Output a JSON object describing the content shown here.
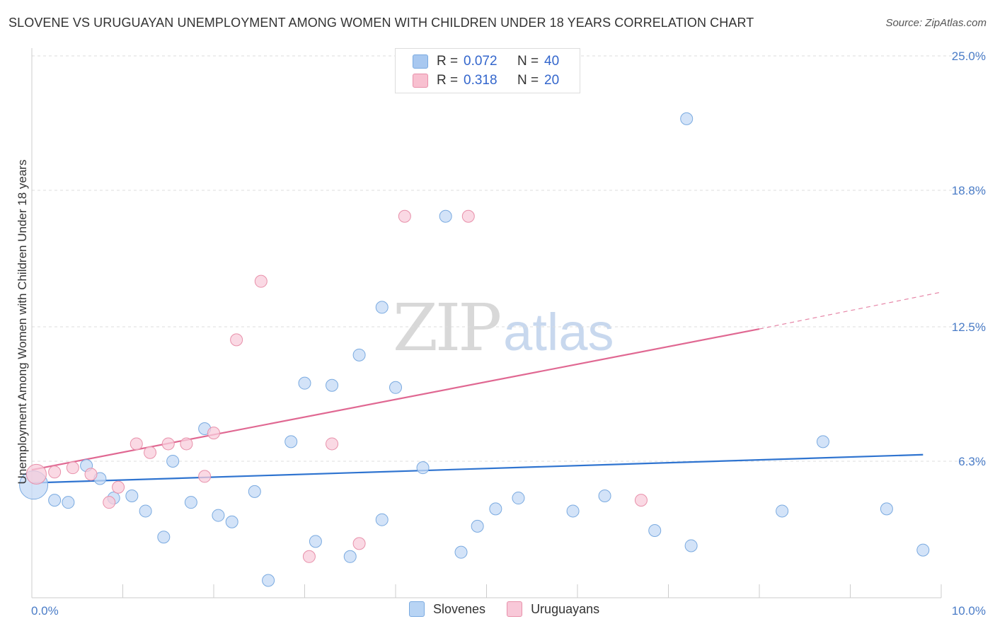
{
  "title": "SLOVENE VS URUGUAYAN UNEMPLOYMENT AMONG WOMEN WITH CHILDREN UNDER 18 YEARS CORRELATION CHART",
  "source": "Source: ZipAtlas.com",
  "watermark": {
    "zip": "ZIP",
    "atlas": "atlas"
  },
  "legend": {
    "rows": [
      {
        "r_label": "R =",
        "r_value": "0.072",
        "n_label": "N =",
        "n_value": "40",
        "color": "#a8c8f0",
        "border": "#7aaae0"
      },
      {
        "r_label": "R =",
        "r_value": "0.318",
        "n_label": "N =",
        "n_value": "20",
        "color": "#f8c0d0",
        "border": "#e890aa"
      }
    ]
  },
  "bottom_legend": [
    {
      "label": "Slovenes",
      "color": "#b8d4f4",
      "border": "#7aaae0"
    },
    {
      "label": "Uruguayans",
      "color": "#f8c8d8",
      "border": "#e890aa"
    }
  ],
  "chart_data": {
    "type": "scatter",
    "title": "SLOVENE VS URUGUAYAN UNEMPLOYMENT AMONG WOMEN WITH CHILDREN UNDER 18 YEARS CORRELATION CHART",
    "xlabel": "",
    "ylabel": "Unemployment Among Women with Children Under 18 years",
    "xlim": [
      0,
      10
    ],
    "ylim": [
      0,
      25
    ],
    "x_tick_labels": [
      "0.0%",
      "10.0%"
    ],
    "y_ticks": [
      6.3,
      12.5,
      18.8,
      25.0
    ],
    "y_tick_labels": [
      "6.3%",
      "12.5%",
      "18.8%",
      "25.0%"
    ],
    "grid": true,
    "series": [
      {
        "name": "Slovenes",
        "color": "#7aaae0",
        "fill": "#c4daf5",
        "trend": {
          "x0": 0,
          "y0": 5.3,
          "x1": 9.8,
          "y1": 6.6,
          "color": "#2f74d0"
        },
        "points": [
          [
            0.02,
            5.2
          ],
          [
            0.25,
            4.5
          ],
          [
            0.4,
            4.4
          ],
          [
            0.6,
            6.1
          ],
          [
            0.75,
            5.5
          ],
          [
            0.9,
            4.6
          ],
          [
            1.1,
            4.7
          ],
          [
            1.25,
            4.0
          ],
          [
            1.45,
            2.8
          ],
          [
            1.55,
            6.3
          ],
          [
            1.75,
            4.4
          ],
          [
            1.9,
            7.8
          ],
          [
            2.05,
            3.8
          ],
          [
            2.2,
            3.5
          ],
          [
            2.45,
            4.9
          ],
          [
            2.6,
            0.8
          ],
          [
            2.85,
            7.2
          ],
          [
            3.0,
            9.9
          ],
          [
            3.12,
            2.6
          ],
          [
            3.3,
            9.8
          ],
          [
            3.5,
            1.9
          ],
          [
            3.6,
            11.2
          ],
          [
            3.85,
            13.4
          ],
          [
            3.85,
            3.6
          ],
          [
            4.0,
            9.7
          ],
          [
            4.3,
            6.0
          ],
          [
            4.55,
            17.6
          ],
          [
            4.72,
            2.1
          ],
          [
            4.9,
            3.3
          ],
          [
            5.1,
            4.1
          ],
          [
            5.35,
            4.6
          ],
          [
            5.95,
            4.0
          ],
          [
            6.3,
            4.7
          ],
          [
            6.85,
            3.1
          ],
          [
            7.2,
            22.1
          ],
          [
            7.25,
            2.4
          ],
          [
            8.25,
            4.0
          ],
          [
            8.7,
            7.2
          ],
          [
            9.4,
            4.1
          ],
          [
            9.8,
            2.2
          ]
        ]
      },
      {
        "name": "Uruguayans",
        "color": "#e890aa",
        "fill": "#f8ccdb",
        "trend": {
          "x0": 0,
          "y0": 5.9,
          "x1": 8.0,
          "y1": 12.4,
          "dash_x1": 10.0,
          "dash_y1": 14.1,
          "color": "#e06892"
        },
        "points": [
          [
            0.05,
            5.7
          ],
          [
            0.25,
            5.8
          ],
          [
            0.45,
            6.0
          ],
          [
            0.65,
            5.7
          ],
          [
            0.85,
            4.4
          ],
          [
            0.95,
            5.1
          ],
          [
            1.15,
            7.1
          ],
          [
            1.3,
            6.7
          ],
          [
            1.5,
            7.1
          ],
          [
            1.7,
            7.1
          ],
          [
            1.9,
            5.6
          ],
          [
            2.0,
            7.6
          ],
          [
            2.25,
            11.9
          ],
          [
            2.52,
            14.6
          ],
          [
            3.05,
            1.9
          ],
          [
            3.3,
            7.1
          ],
          [
            3.6,
            2.5
          ],
          [
            4.1,
            17.6
          ],
          [
            4.8,
            17.6
          ],
          [
            6.7,
            4.5
          ]
        ]
      }
    ]
  }
}
